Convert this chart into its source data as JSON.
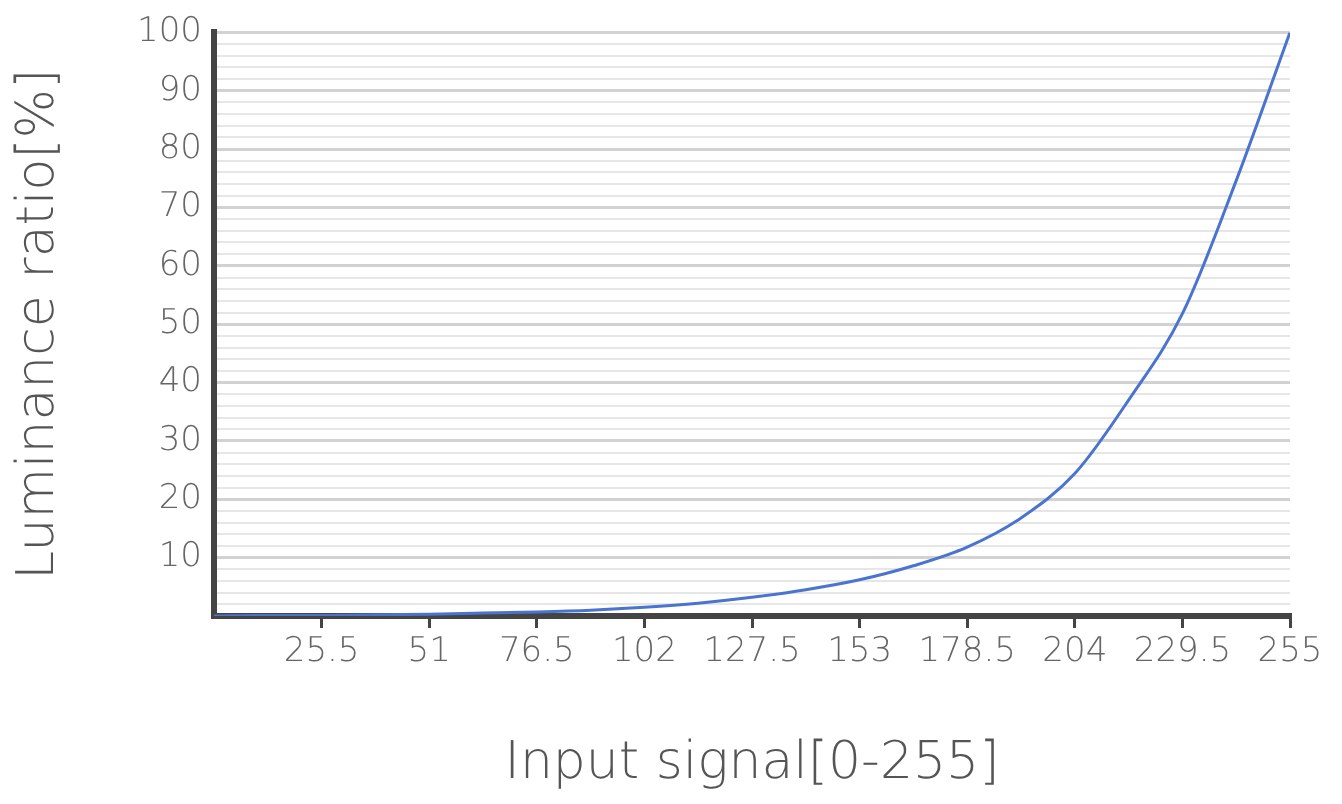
{
  "chart_data": {
    "type": "line",
    "xlabel": "Input signal[0-255]",
    "ylabel": "Luminance ratio[%]",
    "x": [
      0,
      12.75,
      25.5,
      38.25,
      51,
      63.75,
      76.5,
      89.25,
      102,
      114.75,
      127.5,
      140.25,
      153,
      165.75,
      178.5,
      191.25,
      204,
      216.75,
      229.5,
      242.25,
      255
    ],
    "series": [
      {
        "color": "#4a74d0",
        "values": [
          0,
          0.1,
          0.1,
          0.2,
          0.3,
          0.5,
          0.7,
          1.0,
          1.5,
          2.2,
          3.2,
          4.5,
          6.2,
          8.6,
          11.8,
          16.8,
          24.4,
          37,
          51.8,
          74.6,
          100
        ]
      }
    ],
    "xlim": [
      0,
      255
    ],
    "ylim": [
      0,
      100
    ],
    "xticks": [
      25.5,
      51,
      76.5,
      102,
      127.5,
      153,
      178.5,
      204,
      229.5,
      255
    ],
    "yticks": [
      {
        "value": 2,
        "label": null
      },
      {
        "value": 4,
        "label": null
      },
      {
        "value": 6,
        "label": null
      },
      {
        "value": 8,
        "label": null
      },
      10,
      {
        "value": 12,
        "label": null
      },
      {
        "value": 14,
        "label": null
      },
      {
        "value": 16,
        "label": null
      },
      {
        "value": 18,
        "label": null
      },
      20,
      {
        "value": 22,
        "label": null
      },
      {
        "value": 24,
        "label": null
      },
      {
        "value": 26,
        "label": null
      },
      {
        "value": 28,
        "label": null
      },
      30,
      {
        "value": 32,
        "label": null
      },
      {
        "value": 34,
        "label": null
      },
      {
        "value": 36,
        "label": null
      },
      {
        "value": 38,
        "label": null
      },
      40,
      {
        "value": 42,
        "label": null
      },
      {
        "value": 44,
        "label": null
      },
      {
        "value": 46,
        "label": null
      },
      {
        "value": 48,
        "label": null
      },
      50,
      {
        "value": 52,
        "label": null
      },
      {
        "value": 54,
        "label": null
      },
      {
        "value": 56,
        "label": null
      },
      {
        "value": 58,
        "label": null
      },
      60,
      {
        "value": 62,
        "label": null
      },
      {
        "value": 64,
        "label": null
      },
      {
        "value": 66,
        "label": null
      },
      {
        "value": 68,
        "label": null
      },
      70,
      {
        "value": 72,
        "label": null
      },
      {
        "value": 74,
        "label": null
      },
      {
        "value": 76,
        "label": null
      },
      {
        "value": 78,
        "label": null
      },
      80,
      {
        "value": 82,
        "label": null
      },
      {
        "value": 84,
        "label": null
      },
      {
        "value": 86,
        "label": null
      },
      {
        "value": 88,
        "label": null
      },
      90,
      {
        "value": 92,
        "label": null
      },
      {
        "value": 94,
        "label": null
      },
      {
        "value": 96,
        "label": null
      },
      {
        "value": 98,
        "label": null
      },
      100
    ],
    "grid": "y",
    "legend": false,
    "marker": "none",
    "line_style": "solid"
  }
}
